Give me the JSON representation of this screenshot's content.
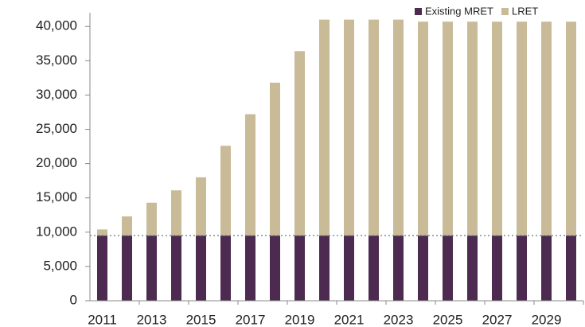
{
  "chart_data": {
    "type": "stacked_bar",
    "categories": [
      "2011",
      null,
      "2013",
      null,
      "2015",
      null,
      "2017",
      null,
      "2019",
      null,
      "2021",
      null,
      "2023",
      null,
      "2025",
      null,
      "2027",
      null,
      "2029",
      null
    ],
    "series": [
      {
        "name": "Existing MRET",
        "color": "#4d2a50",
        "values": [
          9500,
          9500,
          9500,
          9500,
          9500,
          9500,
          9500,
          9500,
          9500,
          9500,
          9500,
          9500,
          9500,
          9500,
          9500,
          9500,
          9500,
          9500,
          9500,
          9500
        ]
      },
      {
        "name": "LRET",
        "color": "#c9bb98",
        "values": [
          900,
          2800,
          4800,
          6600,
          8500,
          13100,
          17700,
          22300,
          26900,
          31500,
          31500,
          31500,
          31500,
          31200,
          31200,
          31200,
          31200,
          31200,
          31200,
          31200
        ]
      }
    ],
    "ylim": [
      0,
      42000
    ],
    "yticks": [
      0,
      {
        "value": 5000,
        "label": "5,000"
      },
      {
        "value": 10000,
        "label": "10,000"
      },
      {
        "value": 15000,
        "label": "15,000"
      },
      {
        "value": 20000,
        "label": "20,000"
      },
      {
        "value": 25000,
        "label": "25,000"
      },
      {
        "value": 30000,
        "label": "30,000"
      },
      {
        "value": 35000,
        "label": "35,000"
      },
      {
        "value": 40000,
        "label": "40,000"
      }
    ],
    "legend": "top-right"
  }
}
